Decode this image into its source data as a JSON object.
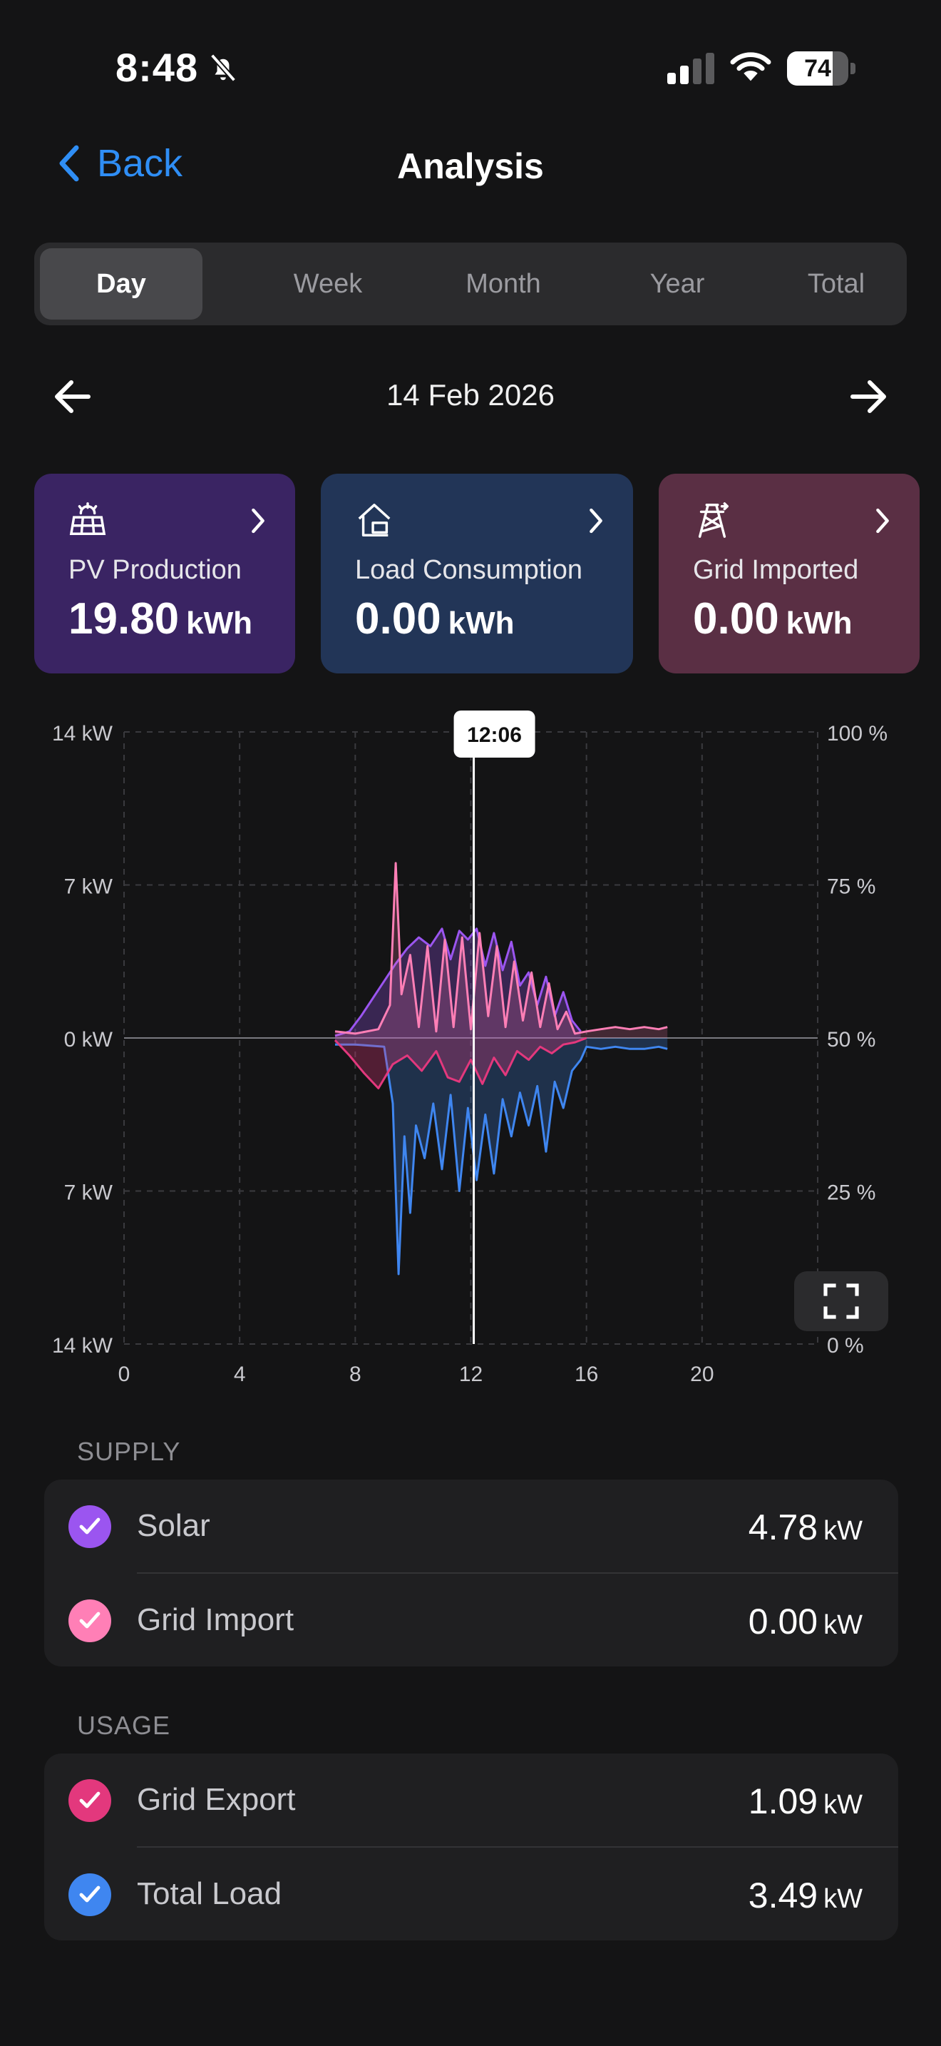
{
  "status_bar": {
    "time": "8:48",
    "battery": "74",
    "battery_level_percent": 74,
    "silent_mode": true
  },
  "nav": {
    "back_label": "Back",
    "title": "Analysis"
  },
  "tabs": [
    {
      "label": "Day",
      "active": true
    },
    {
      "label": "Week",
      "active": false
    },
    {
      "label": "Month",
      "active": false
    },
    {
      "label": "Year",
      "active": false
    },
    {
      "label": "Total",
      "active": false
    }
  ],
  "date": "14 Feb 2026",
  "cards": [
    {
      "label": "PV Production",
      "value": "19.80",
      "unit": "kWh",
      "color": "#3a2463",
      "icon": "solar-panel-icon"
    },
    {
      "label": "Load Consumption",
      "value": "0.00",
      "unit": "kWh",
      "color": "#223557",
      "icon": "house-icon"
    },
    {
      "label": "Grid Imported",
      "value": "0.00",
      "unit": "kWh",
      "color": "#5a2f44",
      "icon": "power-tower-icon"
    }
  ],
  "chart_data": {
    "type": "line",
    "x_ticks": [
      "0",
      "4",
      "8",
      "12",
      "16",
      "20"
    ],
    "xlim": [
      0,
      24
    ],
    "y_left_ticks": [
      "14 kW",
      "7 kW",
      "0 kW",
      "7 kW",
      "14 kW"
    ],
    "ylim": [
      -14,
      14
    ],
    "y_right_ticks": [
      "100 %",
      "75 %",
      "50 %",
      "25 %",
      "0 %"
    ],
    "cursor_label": "12:06",
    "cursor_x": 12.1,
    "grid": true,
    "colors": {
      "solar": "#9b55f0",
      "grid_import": "#ff7fb6",
      "grid_export": "#e3387d",
      "total_load": "#3f86f0"
    },
    "series": [
      {
        "name": "Solar",
        "x": [
          7.3,
          7.8,
          8.2,
          8.6,
          9.0,
          9.4,
          9.8,
          10.2,
          10.6,
          11.0,
          11.3,
          11.6,
          11.9,
          12.2,
          12.5,
          12.8,
          13.1,
          13.4,
          13.7,
          14.0,
          14.3,
          14.6,
          14.9,
          15.2,
          15.5,
          15.8
        ],
        "y": [
          0.1,
          0.3,
          1.0,
          1.8,
          2.6,
          3.4,
          4.1,
          4.6,
          4.2,
          5.0,
          3.6,
          4.9,
          4.5,
          5.0,
          3.3,
          4.8,
          3.1,
          4.4,
          2.4,
          3.0,
          1.5,
          2.8,
          1.0,
          2.1,
          0.8,
          0.3
        ]
      },
      {
        "name": "Grid Import",
        "x": [
          7.3,
          8.0,
          8.8,
          9.2,
          9.4,
          9.6,
          9.9,
          10.2,
          10.5,
          10.8,
          11.1,
          11.4,
          11.7,
          12.0,
          12.3,
          12.6,
          12.9,
          13.2,
          13.5,
          13.8,
          14.1,
          14.4,
          14.7,
          15.0,
          15.3,
          15.6,
          16.0,
          16.5,
          17.0,
          17.5,
          18.0,
          18.5,
          18.8
        ],
        "y": [
          0.3,
          0.2,
          0.4,
          1.5,
          8.0,
          2.0,
          3.8,
          0.5,
          4.2,
          0.3,
          4.5,
          0.5,
          4.6,
          0.4,
          4.8,
          1.0,
          4.2,
          0.5,
          3.5,
          0.8,
          3.0,
          0.5,
          2.5,
          0.4,
          1.2,
          0.2,
          0.3,
          0.4,
          0.5,
          0.4,
          0.5,
          0.4,
          0.5
        ]
      },
      {
        "name": "Grid Export",
        "x": [
          7.3,
          7.8,
          8.3,
          8.8,
          9.3,
          9.8,
          10.3,
          10.8,
          11.2,
          11.6,
          12.0,
          12.4,
          12.8,
          13.2,
          13.6,
          14.0,
          14.4,
          14.8,
          15.2,
          15.6,
          16.0
        ],
        "y": [
          -0.1,
          -0.8,
          -1.6,
          -2.3,
          -1.2,
          -0.8,
          -1.5,
          -0.6,
          -1.8,
          -2.0,
          -1.0,
          -2.1,
          -0.9,
          -1.7,
          -0.6,
          -1.0,
          -0.4,
          -0.7,
          -0.3,
          -0.2,
          0.0
        ]
      },
      {
        "name": "Total Load",
        "x": [
          7.3,
          8.0,
          9.0,
          9.3,
          9.5,
          9.7,
          9.9,
          10.1,
          10.4,
          10.7,
          11.0,
          11.3,
          11.6,
          11.9,
          12.2,
          12.5,
          12.8,
          13.1,
          13.4,
          13.7,
          14.0,
          14.3,
          14.6,
          14.9,
          15.2,
          15.5,
          15.8,
          16.0,
          16.5,
          17.0,
          17.5,
          18.0,
          18.5,
          18.8
        ],
        "y": [
          -0.3,
          -0.3,
          -0.4,
          -3.0,
          -10.8,
          -4.5,
          -8.0,
          -4.0,
          -5.5,
          -3.0,
          -6.0,
          -2.6,
          -7.0,
          -3.2,
          -6.5,
          -3.5,
          -6.2,
          -2.8,
          -4.5,
          -2.5,
          -4.0,
          -2.2,
          -5.2,
          -2.0,
          -3.2,
          -1.5,
          -1.0,
          -0.4,
          -0.5,
          -0.4,
          -0.5,
          -0.5,
          -0.4,
          -0.5
        ]
      }
    ]
  },
  "supply": {
    "header": "SUPPLY",
    "rows": [
      {
        "name": "Solar",
        "value": "4.78",
        "unit": "kW",
        "color": "#9b55f0"
      },
      {
        "name": "Grid Import",
        "value": "0.00",
        "unit": "kW",
        "color": "#ff7fb6"
      }
    ]
  },
  "usage": {
    "header": "USAGE",
    "rows": [
      {
        "name": "Grid Export",
        "value": "1.09",
        "unit": "kW",
        "color": "#e3387d"
      },
      {
        "name": "Total Load",
        "value": "3.49",
        "unit": "kW",
        "color": "#3f86f0"
      }
    ]
  }
}
